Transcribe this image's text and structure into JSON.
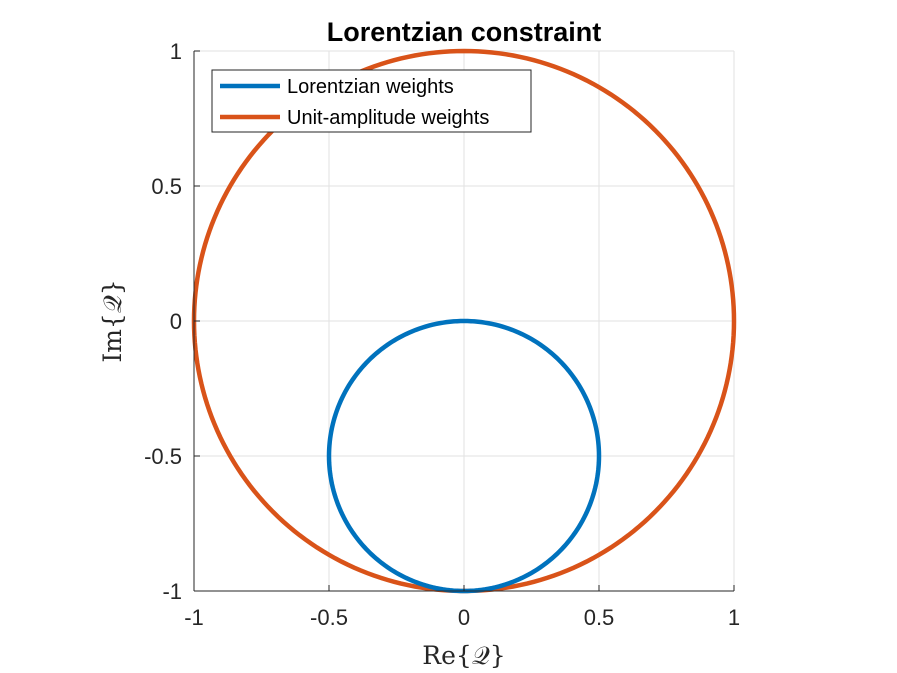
{
  "chart_data": {
    "type": "line",
    "title": "Lorentzian constraint",
    "xlabel": "Re{𝒬}",
    "ylabel": "Im{𝒬}",
    "xlim": [
      -1,
      1
    ],
    "ylim": [
      -1,
      1
    ],
    "xticks": [
      -1,
      -0.5,
      0,
      0.5,
      1
    ],
    "yticks": [
      -1,
      -0.5,
      0,
      0.5,
      1
    ],
    "xtick_labels": [
      "-1",
      "-0.5",
      "0",
      "0.5",
      "1"
    ],
    "ytick_labels": [
      "-1",
      "-0.5",
      "0",
      "0.5",
      "1"
    ],
    "grid": true,
    "legend_location": "top-left",
    "series": [
      {
        "name": "Lorentzian weights",
        "color": "#0072BD",
        "shape": "circle",
        "center": [
          0,
          -0.5
        ],
        "radius": 0.5
      },
      {
        "name": "Unit-amplitude weights",
        "color": "#D95319",
        "shape": "circle",
        "center": [
          0,
          0
        ],
        "radius": 1
      }
    ]
  }
}
